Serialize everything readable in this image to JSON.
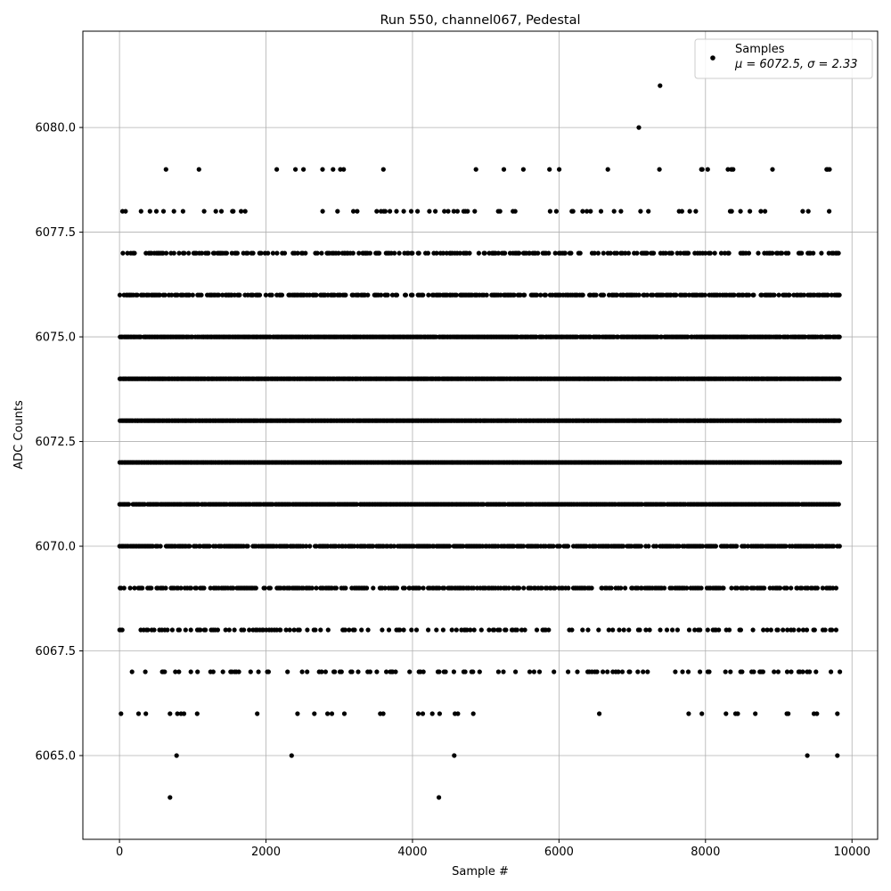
{
  "chart_data": {
    "type": "scatter",
    "title": "Run 550, channel067, Pedestal",
    "xlabel": "Sample #",
    "ylabel": "ADC Counts",
    "xlim": [
      -500,
      10350
    ],
    "ylim": [
      6063.0,
      6082.3
    ],
    "x_ticks": [
      0,
      2000,
      4000,
      6000,
      8000,
      10000
    ],
    "x_tick_labels": [
      "0",
      "2000",
      "4000",
      "6000",
      "8000",
      "10000"
    ],
    "y_ticks": [
      6065.0,
      6067.5,
      6070.0,
      6072.5,
      6075.0,
      6077.5,
      6080.0
    ],
    "y_tick_labels": [
      "6065.0",
      "6067.5",
      "6070.0",
      "6072.5",
      "6075.0",
      "6077.5",
      "6080.0"
    ],
    "grid": true,
    "legend_position": "top-right",
    "series": [
      {
        "name": "Samples",
        "color": "#000000",
        "marker": "filled-circle",
        "stat_label": "μ = 6072.5, σ = 2.33",
        "n_samples": 9840,
        "level_counts": [
          {
            "value": 6064,
            "x": [
              690,
              4360
            ]
          },
          {
            "value": 6065,
            "x": [
              780,
              2350,
              4570,
              9390,
              9800
            ]
          },
          {
            "value": 6066,
            "x": [
              20,
              260,
              360,
              690,
              790,
              840,
              880,
              1060,
              1880,
              2430,
              2660,
              2840,
              2900,
              3070,
              3560,
              3600,
              4080,
              4140,
              4270,
              4370,
              4580,
              4620,
              4830,
              6550,
              7770,
              7950,
              8280,
              8410,
              8440,
              8680,
              9110,
              9130,
              9480,
              9520,
              9800
            ]
          },
          {
            "value": 6080,
            "x": [
              7090
            ]
          },
          {
            "value": 6081,
            "x": [
              7380
            ]
          }
        ],
        "level_x_ranges": [
          {
            "value": 6067,
            "density": 0.2,
            "x_from": 0,
            "x_to": 9840
          },
          {
            "value": 6068,
            "density": 0.25,
            "x_from": 0,
            "x_to": 9840
          },
          {
            "value": 6069,
            "density": 0.55,
            "x_from": 0,
            "x_to": 9840
          },
          {
            "value": 6070,
            "density": 0.75,
            "x_from": 0,
            "x_to": 9840
          },
          {
            "value": 6071,
            "density": 0.95,
            "x_from": 0,
            "x_to": 9840
          },
          {
            "value": 6072,
            "density": 1.0,
            "x_from": 0,
            "x_to": 9840
          },
          {
            "value": 6073,
            "density": 1.0,
            "x_from": 0,
            "x_to": 9840
          },
          {
            "value": 6074,
            "density": 1.0,
            "x_from": 0,
            "x_to": 9840
          },
          {
            "value": 6075,
            "density": 0.95,
            "x_from": 0,
            "x_to": 9840
          },
          {
            "value": 6076,
            "density": 0.6,
            "x_from": 0,
            "x_to": 9840
          },
          {
            "value": 6077,
            "density": 0.45,
            "x_from": 0,
            "x_to": 9840
          },
          {
            "value": 6078,
            "density": 0.12,
            "x_from": 0,
            "x_to": 9840
          },
          {
            "value": 6079,
            "density": 0.03,
            "x_from": 0,
            "x_to": 9840
          }
        ]
      }
    ]
  }
}
